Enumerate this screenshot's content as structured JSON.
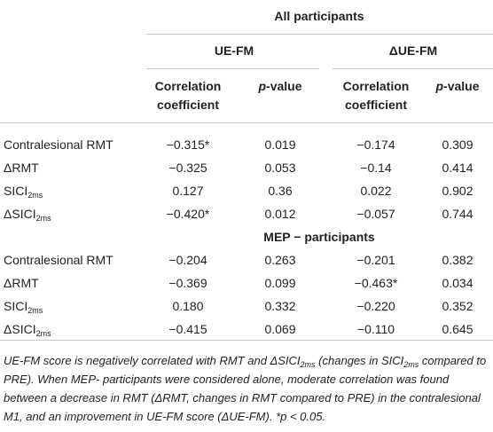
{
  "table": {
    "group_header": "All participants",
    "subgroups": [
      "UE-FM",
      "ΔUE-FM"
    ],
    "column_headers": [
      {
        "lines": [
          "Correlation",
          "coefficient"
        ]
      },
      {
        "parts": [
          {
            "italic": "p"
          },
          {
            "text": "-value"
          }
        ]
      },
      {
        "lines": [
          "Correlation",
          "coefficient"
        ]
      },
      {
        "parts": [
          {
            "italic": "p"
          },
          {
            "text": "-value"
          }
        ]
      }
    ],
    "sections": [
      {
        "rows": [
          {
            "label": [
              {
                "text": "Contralesional RMT"
              }
            ],
            "cells": [
              "−0.315*",
              "0.019",
              "−0.174",
              "0.309"
            ]
          },
          {
            "label": [
              {
                "text": "ΔRMT"
              }
            ],
            "cells": [
              "−0.325",
              "0.053",
              "−0.14",
              "0.414"
            ]
          },
          {
            "label": [
              {
                "text": "SICI"
              },
              {
                "sub": "2ms"
              }
            ],
            "cells": [
              "0.127",
              "0.36",
              "0.022",
              "0.902"
            ]
          },
          {
            "label": [
              {
                "text": "ΔSICI"
              },
              {
                "sub": "2ms"
              }
            ],
            "cells": [
              "−0.420*",
              "0.012",
              "−0.057",
              "0.744"
            ]
          }
        ]
      },
      {
        "title": "MEP − participants",
        "rows": [
          {
            "label": [
              {
                "text": "Contralesional RMT"
              }
            ],
            "cells": [
              "−0.204",
              "0.263",
              "−0.201",
              "0.382"
            ]
          },
          {
            "label": [
              {
                "text": "ΔRMT"
              }
            ],
            "cells": [
              "−0.369",
              "0.099",
              "−0.463*",
              "0.034"
            ]
          },
          {
            "label": [
              {
                "text": "SICI"
              },
              {
                "sub": "2ms"
              }
            ],
            "cells": [
              "0.180",
              "0.332",
              "−0.220",
              "0.352"
            ]
          },
          {
            "label": [
              {
                "text": "ΔSICI"
              },
              {
                "sub": "2ms"
              }
            ],
            "cells": [
              "−0.415",
              "0.069",
              "−0.110",
              "0.645"
            ]
          }
        ]
      }
    ],
    "caption": [
      {
        "text": "UE-FM score is negatively correlated with RMT and ΔSICI"
      },
      {
        "sub": "2ms"
      },
      {
        "text": " (changes in SICI"
      },
      {
        "sub": "2ms"
      },
      {
        "text": " compared to PRE). When MEP- participants were considered alone, moderate correlation was found between a decrease in RMT (ΔRMT, changes in RMT compared to PRE) in the contralesional M1, and an improvement in UE-FM score (ΔUE-FM). *p < 0.05."
      }
    ]
  }
}
